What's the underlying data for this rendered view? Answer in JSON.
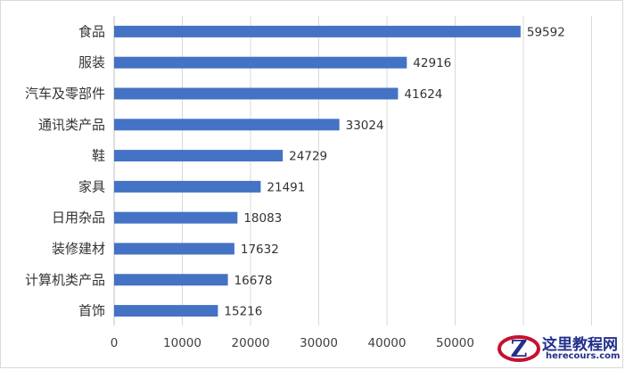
{
  "chart_data": {
    "type": "bar",
    "orientation": "horizontal",
    "categories": [
      "食品",
      "服装",
      "汽车及零部件",
      "通讯类产品",
      "鞋",
      "家具",
      "日用杂品",
      "装修建材",
      "计算机类产品",
      "首饰"
    ],
    "values": [
      59592,
      42916,
      41624,
      33024,
      24729,
      21491,
      18083,
      17632,
      16678,
      15216
    ],
    "xticks": [
      "0",
      "10000",
      "20000",
      "30000",
      "40000",
      "50000"
    ],
    "xlim": [
      0,
      70000
    ],
    "grid": "vertical",
    "bar_color": "#4472c4",
    "title": "",
    "xlabel": "",
    "ylabel": ""
  },
  "watermark": {
    "title": "这里教程网",
    "subtitle": "herecours.com",
    "logo_letter": "Z"
  }
}
